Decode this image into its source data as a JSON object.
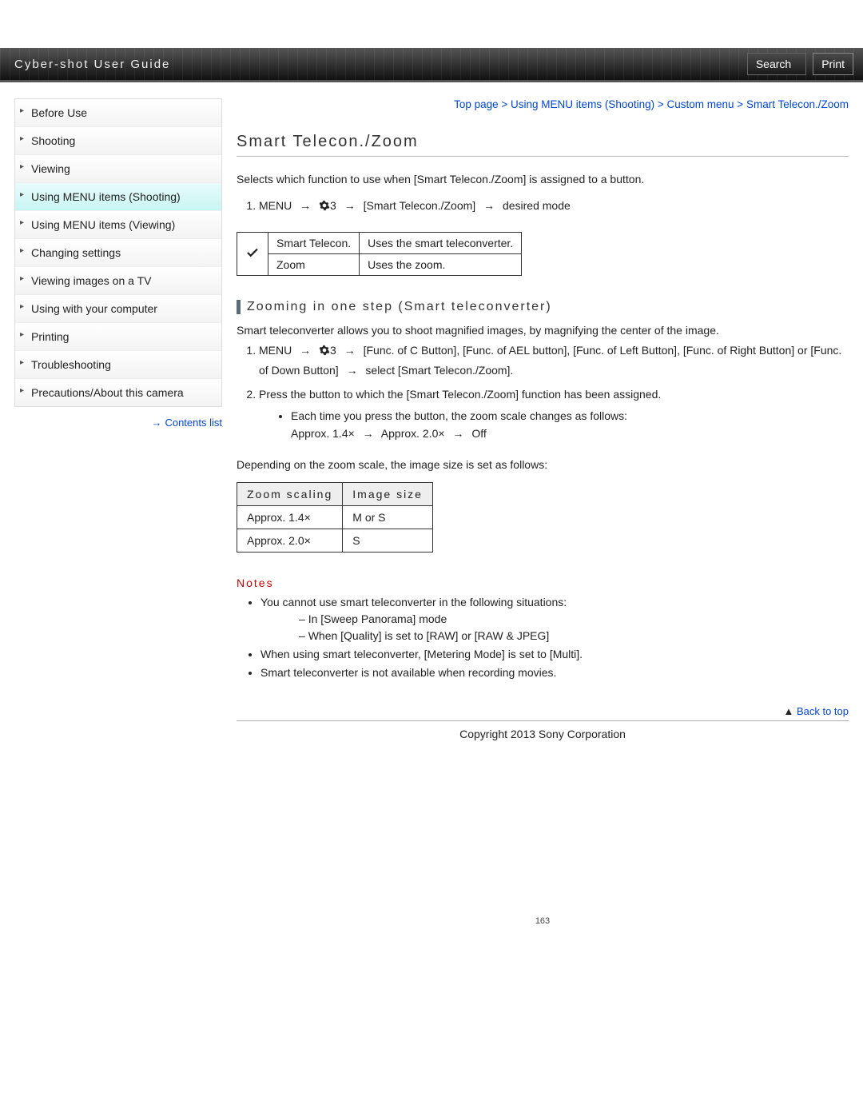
{
  "header": {
    "title": "Cyber-shot User Guide",
    "search_label": "Search",
    "print_label": "Print"
  },
  "breadcrumb": {
    "parts": [
      "Top page",
      "Using MENU items (Shooting)",
      "Custom menu",
      "Smart Telecon./Zoom"
    ],
    "sep": " > "
  },
  "sidebar": {
    "items": [
      "Before Use",
      "Shooting",
      "Viewing",
      "Using MENU items (Shooting)",
      "Using MENU items (Viewing)",
      "Changing settings",
      "Viewing images on a TV",
      "Using with your computer",
      "Printing",
      "Troubleshooting",
      "Precautions/About this camera"
    ],
    "active_index": 3,
    "contents_link": "Contents list"
  },
  "main": {
    "title": "Smart Telecon./Zoom",
    "intro": "Selects which function to use when [Smart Telecon./Zoom] is assigned to a button.",
    "step1_menu": "MENU",
    "step1_gearnum": "3",
    "step1_item": "[Smart Telecon./Zoom]",
    "step1_tail": "desired mode",
    "options": [
      {
        "check": true,
        "name": "Smart Telecon.",
        "desc": "Uses the smart teleconverter."
      },
      {
        "check": false,
        "name": "Zoom",
        "desc": "Uses the zoom."
      }
    ],
    "sub_title": "Zooming in one step (Smart teleconverter)",
    "sub_intro": "Smart teleconverter allows you to shoot magnified images, by magnifying the center of the image.",
    "sub_step1a": "MENU",
    "sub_step1b": "3",
    "sub_step1c": "[Func. of C Button], [Func. of AEL button], [Func. of Left Button], [Func. of Right Button] or [Func. of Down Button]",
    "sub_step1d": "select [Smart Telecon./Zoom].",
    "sub_step2": "Press the button to which the [Smart Telecon./Zoom] function has been assigned.",
    "sub_step2_bullet": "Each time you press the button, the zoom scale changes as follows:",
    "sub_step2_scale_a": "Approx. 1.4×",
    "sub_step2_scale_b": "Approx. 2.0×",
    "sub_step2_scale_c": "Off",
    "depending": "Depending on the zoom scale, the image size is set as follows:",
    "zoom_table": {
      "h1": "Zoom scaling",
      "h2": "Image size",
      "rows": [
        {
          "a": "Approx. 1.4×",
          "b": "M or S"
        },
        {
          "a": "Approx. 2.0×",
          "b": "S"
        }
      ]
    },
    "notes_title": "Notes",
    "notes": {
      "n0": "You cannot use smart teleconverter in the following situations:",
      "n0a": "In [Sweep Panorama] mode",
      "n0b": "When [Quality] is set to [RAW] or [RAW & JPEG]",
      "n1": "When using smart teleconverter, [Metering Mode] is set to [Multi].",
      "n2": "Smart teleconverter is not available when recording movies."
    },
    "back_to_top": "Back to top",
    "copyright": "Copyright 2013 Sony Corporation",
    "page_number": "163"
  },
  "colors": {
    "link": "#0046d5",
    "notes": "#c00000",
    "active_bg": "#c8f5f2"
  }
}
